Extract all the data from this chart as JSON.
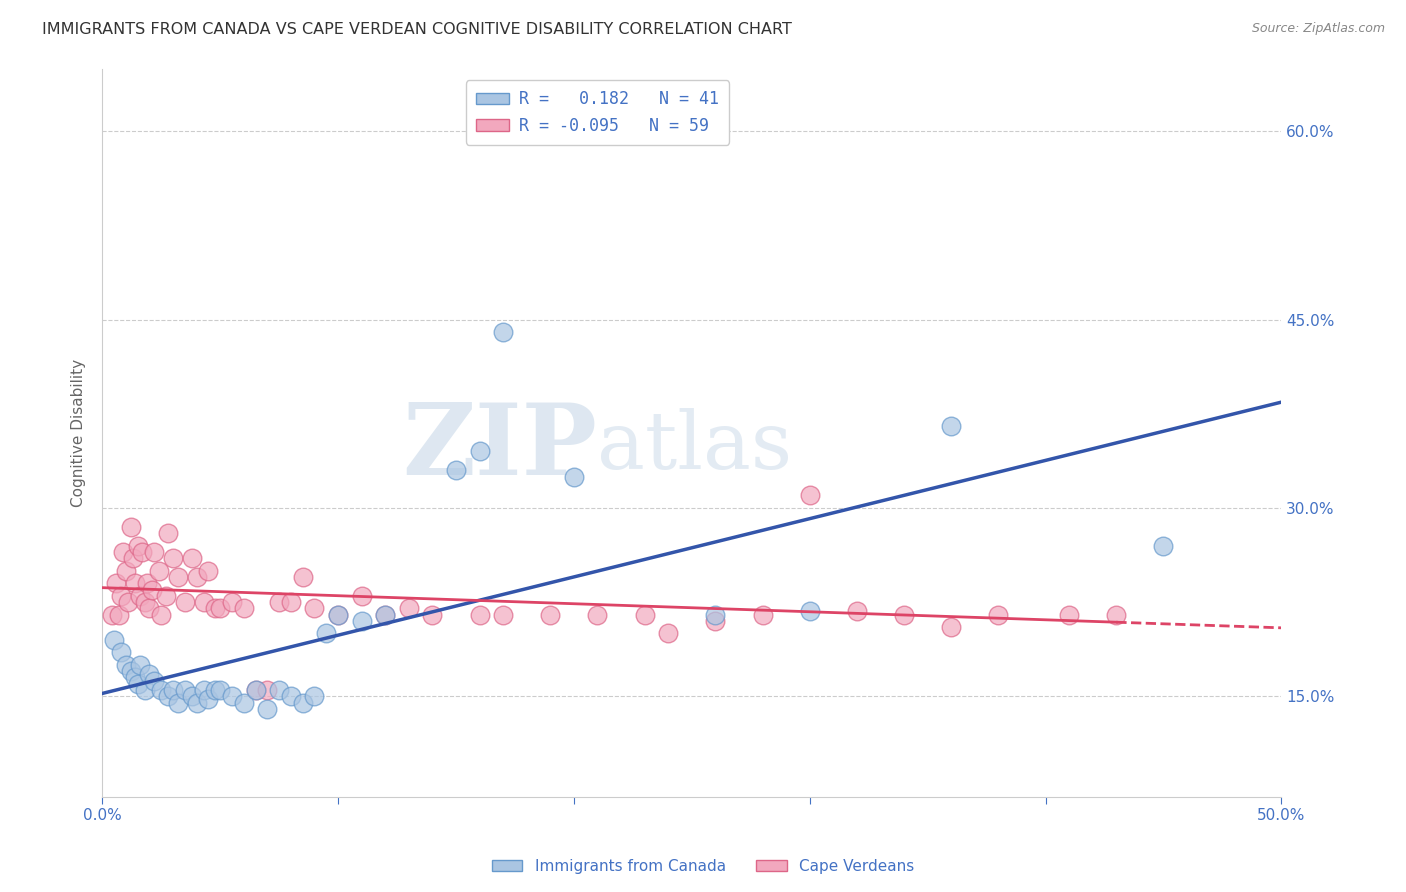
{
  "title": "IMMIGRANTS FROM CANADA VS CAPE VERDEAN COGNITIVE DISABILITY CORRELATION CHART",
  "source": "Source: ZipAtlas.com",
  "ylabel": "Cognitive Disability",
  "y_ticks": [
    0.15,
    0.3,
    0.45,
    0.6
  ],
  "y_tick_labels": [
    "15.0%",
    "30.0%",
    "45.0%",
    "60.0%"
  ],
  "xlim": [
    0.0,
    0.5
  ],
  "ylim": [
    0.07,
    0.65
  ],
  "x_tick_positions": [
    0.0,
    0.1,
    0.2,
    0.3,
    0.4,
    0.5
  ],
  "x_tick_labels": [
    "0.0%",
    "",
    "",
    "",
    "",
    "50.0%"
  ],
  "blue_color": "#aac5e2",
  "pink_color": "#f2a8be",
  "blue_edge": "#6699cc",
  "pink_edge": "#dd6688",
  "trend_blue": "#3355aa",
  "trend_pink": "#dd4466",
  "canada_x": [
    0.005,
    0.008,
    0.01,
    0.012,
    0.014,
    0.015,
    0.016,
    0.018,
    0.02,
    0.022,
    0.025,
    0.028,
    0.03,
    0.032,
    0.035,
    0.038,
    0.04,
    0.043,
    0.045,
    0.048,
    0.05,
    0.055,
    0.06,
    0.065,
    0.07,
    0.075,
    0.08,
    0.085,
    0.09,
    0.095,
    0.1,
    0.11,
    0.12,
    0.15,
    0.16,
    0.17,
    0.2,
    0.26,
    0.3,
    0.36,
    0.45
  ],
  "canada_y": [
    0.195,
    0.185,
    0.175,
    0.17,
    0.165,
    0.16,
    0.175,
    0.155,
    0.168,
    0.162,
    0.155,
    0.15,
    0.155,
    0.145,
    0.155,
    0.15,
    0.145,
    0.155,
    0.148,
    0.155,
    0.155,
    0.15,
    0.145,
    0.155,
    0.14,
    0.155,
    0.15,
    0.145,
    0.15,
    0.2,
    0.215,
    0.21,
    0.215,
    0.33,
    0.345,
    0.44,
    0.325,
    0.215,
    0.218,
    0.365,
    0.27
  ],
  "capeverde_x": [
    0.004,
    0.006,
    0.007,
    0.008,
    0.009,
    0.01,
    0.011,
    0.012,
    0.013,
    0.014,
    0.015,
    0.016,
    0.017,
    0.018,
    0.019,
    0.02,
    0.021,
    0.022,
    0.024,
    0.025,
    0.027,
    0.028,
    0.03,
    0.032,
    0.035,
    0.038,
    0.04,
    0.043,
    0.045,
    0.048,
    0.05,
    0.055,
    0.06,
    0.065,
    0.07,
    0.075,
    0.08,
    0.085,
    0.09,
    0.1,
    0.11,
    0.12,
    0.13,
    0.14,
    0.16,
    0.17,
    0.19,
    0.21,
    0.23,
    0.24,
    0.26,
    0.28,
    0.3,
    0.32,
    0.34,
    0.36,
    0.38,
    0.41,
    0.43
  ],
  "capeverde_y": [
    0.215,
    0.24,
    0.215,
    0.23,
    0.265,
    0.25,
    0.225,
    0.285,
    0.26,
    0.24,
    0.27,
    0.23,
    0.265,
    0.225,
    0.24,
    0.22,
    0.235,
    0.265,
    0.25,
    0.215,
    0.23,
    0.28,
    0.26,
    0.245,
    0.225,
    0.26,
    0.245,
    0.225,
    0.25,
    0.22,
    0.22,
    0.225,
    0.22,
    0.155,
    0.155,
    0.225,
    0.225,
    0.245,
    0.22,
    0.215,
    0.23,
    0.215,
    0.22,
    0.215,
    0.215,
    0.215,
    0.215,
    0.215,
    0.215,
    0.2,
    0.21,
    0.215,
    0.31,
    0.218,
    0.215,
    0.205,
    0.215,
    0.215,
    0.215
  ],
  "watermark_zip": "ZIP",
  "watermark_atlas": "atlas",
  "background_color": "#ffffff",
  "grid_color": "#cccccc",
  "axis_color": "#4472c4",
  "title_color": "#333333",
  "source_color": "#888888",
  "title_fontsize": 11.5,
  "axis_label_fontsize": 11,
  "tick_fontsize": 11,
  "legend_fontsize": 12,
  "marker_size": 180,
  "marker_alpha": 0.7
}
